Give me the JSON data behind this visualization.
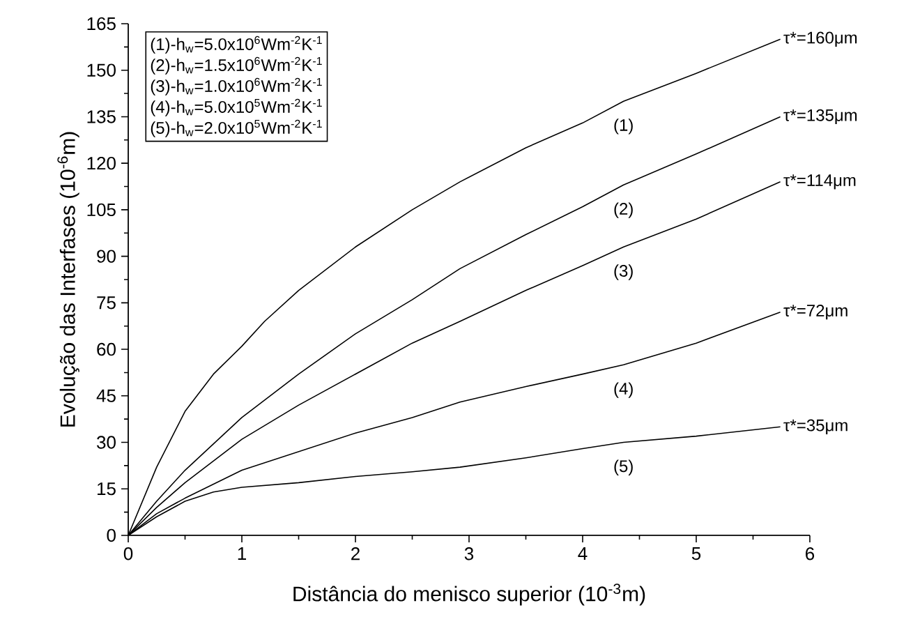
{
  "chart_data": {
    "type": "line",
    "xlabel": "Distância do menisco superior (10$^{-3}$m)",
    "ylabel": "Evolução das Interfases (10$^{-6}$m)",
    "xlim": [
      0,
      6
    ],
    "xticks": [
      0,
      1,
      2,
      3,
      4,
      5,
      6
    ],
    "ylim": [
      0,
      165
    ],
    "yticks": [
      0,
      15,
      30,
      45,
      60,
      75,
      90,
      105,
      120,
      135,
      150,
      165
    ],
    "series": [
      {
        "color": "#000000",
        "x": [
          0,
          0.25,
          0.5,
          0.75,
          1,
          1.2,
          1.5,
          2,
          2.5,
          2.92,
          3.5,
          4,
          4.36,
          5,
          5.74
        ],
        "values": [
          0,
          22,
          40,
          52,
          61,
          69,
          79,
          93,
          105,
          114,
          125,
          133,
          140,
          149,
          160
        ]
      },
      {
        "color": "#000000",
        "x": [
          0,
          0.25,
          0.5,
          1,
          1.5,
          2,
          2.5,
          2.92,
          3.5,
          4,
          4.36,
          5,
          5.74
        ],
        "values": [
          0,
          11,
          21,
          38,
          52,
          65,
          76,
          86,
          97,
          106,
          113,
          123,
          135
        ]
      },
      {
        "color": "#000000",
        "x": [
          0,
          0.25,
          0.5,
          1,
          1.5,
          2,
          2.5,
          2.92,
          3.5,
          4,
          4.36,
          5,
          5.74
        ],
        "values": [
          0,
          9,
          17,
          31,
          42,
          52,
          62,
          69,
          79,
          87,
          93,
          102,
          114
        ]
      },
      {
        "color": "#000000",
        "x": [
          0,
          0.25,
          0.5,
          1,
          1.5,
          2,
          2.5,
          2.92,
          3.5,
          4,
          4.36,
          5,
          5.74
        ],
        "values": [
          0,
          7,
          12,
          21,
          27,
          33,
          38,
          43,
          48,
          52,
          55,
          62,
          72
        ]
      },
      {
        "color": "#000000",
        "x": [
          0,
          0.25,
          0.5,
          0.75,
          1,
          1.5,
          2,
          2.5,
          2.92,
          3.5,
          4,
          4.36,
          5,
          5.74
        ],
        "values": [
          0,
          6,
          11,
          14,
          15.5,
          17,
          19,
          20.5,
          22,
          25,
          28,
          30,
          32,
          35
        ]
      }
    ],
    "annotations": [
      "(1)-h$_{w}$=5.0x10$^{6}$Wm$^{-2}$K$^{-1}$",
      "(2)-h$_{w}$=1.5x10$^{6}$Wm$^{-2}$K$^{-1}$",
      "(3)-h$_{w}$=1.0x10$^{6}$Wm$^{-2}$K$^{-1}$",
      "(4)-h$_{w}$=5.0x10$^{5}$Wm$^{-2}$K$^{-1}$",
      "(5)-h$_{w}$=2.0x10$^{5}$Wm$^{-2}$K$^{-1}$",
      "(1)",
      "(2)",
      "(3)",
      "(4)",
      "(5)",
      "τ*=160μm",
      "τ*=135μm",
      "τ*=114μm",
      "τ*=72μm",
      "τ*=35μm"
    ]
  }
}
